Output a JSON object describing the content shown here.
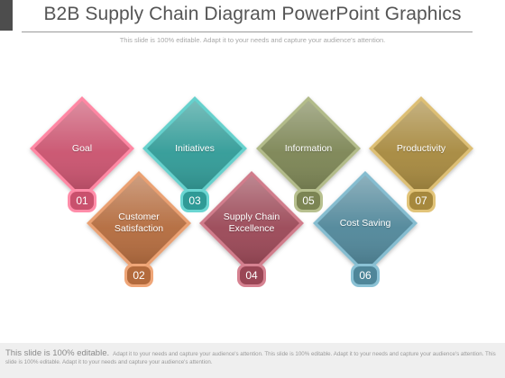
{
  "slide": {
    "title": "B2B Supply Chain Diagram PowerPoint Graphics",
    "subtitle": "This slide is 100% editable. Adapt it to your needs and capture your audience's attention."
  },
  "nodes": [
    {
      "number": "01",
      "label": "Goal",
      "color": "#c9516d"
    },
    {
      "number": "02",
      "label": "Customer\nSatisfaction",
      "color": "#b36a3c"
    },
    {
      "number": "03",
      "label": "Initiatives",
      "color": "#2f9a96"
    },
    {
      "number": "04",
      "label": "Supply Chain\nExcellence",
      "color": "#9a4655"
    },
    {
      "number": "05",
      "label": "Information",
      "color": "#7b8453"
    },
    {
      "number": "06",
      "label": "Cost Saving",
      "color": "#4f8699"
    },
    {
      "number": "07",
      "label": "Productivity",
      "color": "#a6883d"
    }
  ],
  "footer": {
    "lead": "This slide is 100% editable.",
    "body": "Adapt it to your needs and capture your audience's attention. This slide is 100% editable. Adapt it to your needs and capture your audience's attention. This slide is 100% editable. Adapt it to your needs and capture your audience's attention."
  }
}
